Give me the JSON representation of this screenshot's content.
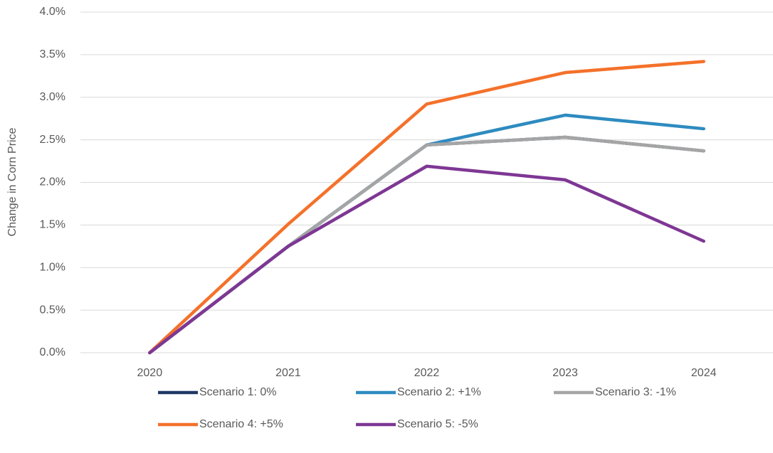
{
  "chart_data": {
    "type": "line",
    "y_label": "Change in Corn Price",
    "categories": [
      "2020",
      "2021",
      "2022",
      "2023",
      "2024"
    ],
    "series": [
      {
        "name": "Scenario 1: 0%",
        "color": "#1f3864",
        "values": [
          0,
          1.25,
          2.44,
          2.53,
          2.37
        ]
      },
      {
        "name": "Scenario 2: +1%",
        "color": "#2e8bc0",
        "values": [
          0,
          1.25,
          2.44,
          2.79,
          2.63
        ]
      },
      {
        "name": "Scenario 3: -1%",
        "color": "#a5a5a5",
        "values": [
          0,
          1.25,
          2.44,
          2.53,
          2.37
        ]
      },
      {
        "name": "Scenario 4: +5%",
        "color": "#f4712a",
        "values": [
          0,
          1.51,
          2.92,
          3.29,
          3.42
        ]
      },
      {
        "name": "Scenario 5: -5%",
        "color": "#7e3794",
        "values": [
          0,
          1.25,
          2.19,
          2.03,
          1.31
        ]
      }
    ],
    "ylim": [
      0,
      4
    ],
    "yticks": [
      {
        "value": 0,
        "label": "0.0%"
      },
      {
        "value": 0.5,
        "label": "0.5%"
      },
      {
        "value": 1,
        "label": "1.0%"
      },
      {
        "value": 1.5,
        "label": "1.5%"
      },
      {
        "value": 2,
        "label": "2.0%"
      },
      {
        "value": 2.5,
        "label": "2.5%"
      },
      {
        "value": 3,
        "label": "3.0%"
      },
      {
        "value": 3.5,
        "label": "3.5%"
      },
      {
        "value": 4,
        "label": "4.0%"
      }
    ],
    "grid": true,
    "legend": "bottom"
  }
}
